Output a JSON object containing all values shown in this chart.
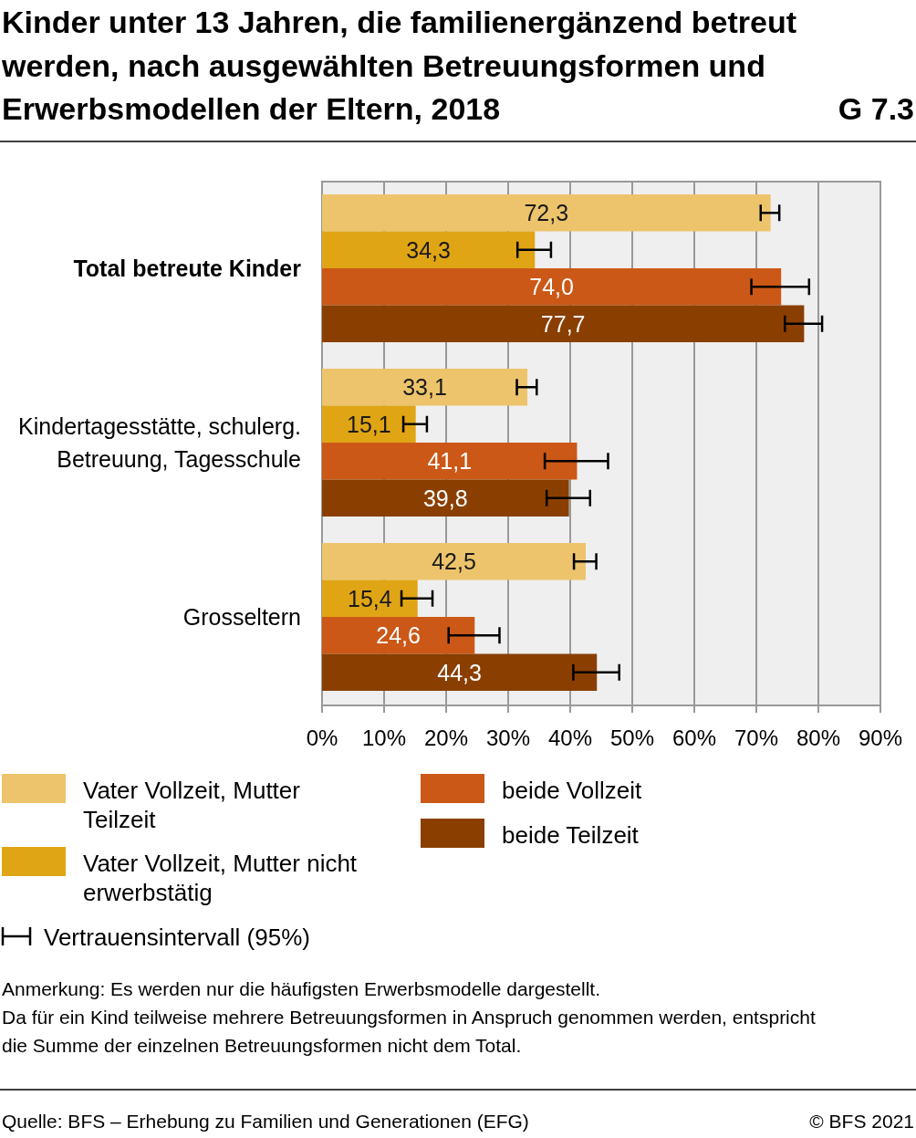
{
  "chart_data": {
    "type": "bar",
    "orientation": "horizontal",
    "title": "Kinder unter 13 Jahren, die familienergänzend betreut werden, nach ausgewählten Betreuungsformen und Erwerbsmodellen der Eltern, 2018",
    "subtitle": "G 7.3",
    "categories": [
      "Total betreute Kinder",
      "Kindertagesstätte, schulerg. Betreuung, Tagesschule",
      "Grosseltern"
    ],
    "series": [
      {
        "name": "Vater Vollzeit, Mutter Teilzeit",
        "color": "#edc46c",
        "values": [
          72.3,
          33.1,
          42.5
        ],
        "value_labels": [
          "72,3",
          "33,1",
          "42,5"
        ],
        "errors": [
          [
            70.7,
            73.7
          ],
          [
            31.4,
            34.6
          ],
          [
            40.6,
            44.2
          ]
        ]
      },
      {
        "name": "Vater Vollzeit, Mutter nicht erwerbstätig",
        "color": "#e0a515",
        "values": [
          34.3,
          15.1,
          15.4
        ],
        "value_labels": [
          "34,3",
          "15,1",
          "15,4"
        ],
        "errors": [
          [
            31.5,
            36.9
          ],
          [
            13.1,
            16.9
          ],
          [
            12.8,
            17.8
          ]
        ]
      },
      {
        "name": "beide Vollzeit",
        "color": "#cb5817",
        "values": [
          74.0,
          41.1,
          24.6
        ],
        "value_labels": [
          "74,0",
          "41,1",
          "24,6"
        ],
        "errors": [
          [
            69.2,
            78.5
          ],
          [
            35.9,
            46.1
          ],
          [
            20.4,
            28.6
          ]
        ]
      },
      {
        "name": "beide Teilzeit",
        "color": "#8a3f00",
        "values": [
          77.7,
          39.8,
          44.3
        ],
        "value_labels": [
          "77,7",
          "39,8",
          "44,3"
        ],
        "errors": [
          [
            74.6,
            80.6
          ],
          [
            36.2,
            43.2
          ],
          [
            40.5,
            47.9
          ]
        ]
      }
    ],
    "xlim": [
      0,
      90
    ],
    "xticks": [
      {
        "value": 0,
        "label": "0%"
      },
      {
        "value": 10,
        "label": "10%"
      },
      {
        "value": 20,
        "label": "20%"
      },
      {
        "value": 30,
        "label": "30%"
      },
      {
        "value": 40,
        "label": "40%"
      },
      {
        "value": 50,
        "label": "50%"
      },
      {
        "value": 60,
        "label": "60%"
      },
      {
        "value": 70,
        "label": "70%"
      },
      {
        "value": 80,
        "label": "80%"
      },
      {
        "value": 90,
        "label": "90%"
      }
    ],
    "grid": "x",
    "legend": "bottom",
    "annotations": [
      "Vertrauensintervall (95%)",
      "Anmerkung: Es werden nur die häufigsten Erwerbsmodelle dargestellt.",
      "Da für ein Kind teilweise mehrere Betreuungsformen in Anspruch genommen werden, entspricht die Summe der einzelnen Betreuungsformen nicht dem Total.",
      "Quelle: BFS – Erhebung zu Familien und Generationen (EFG)",
      "© BFS 2021"
    ]
  }
}
